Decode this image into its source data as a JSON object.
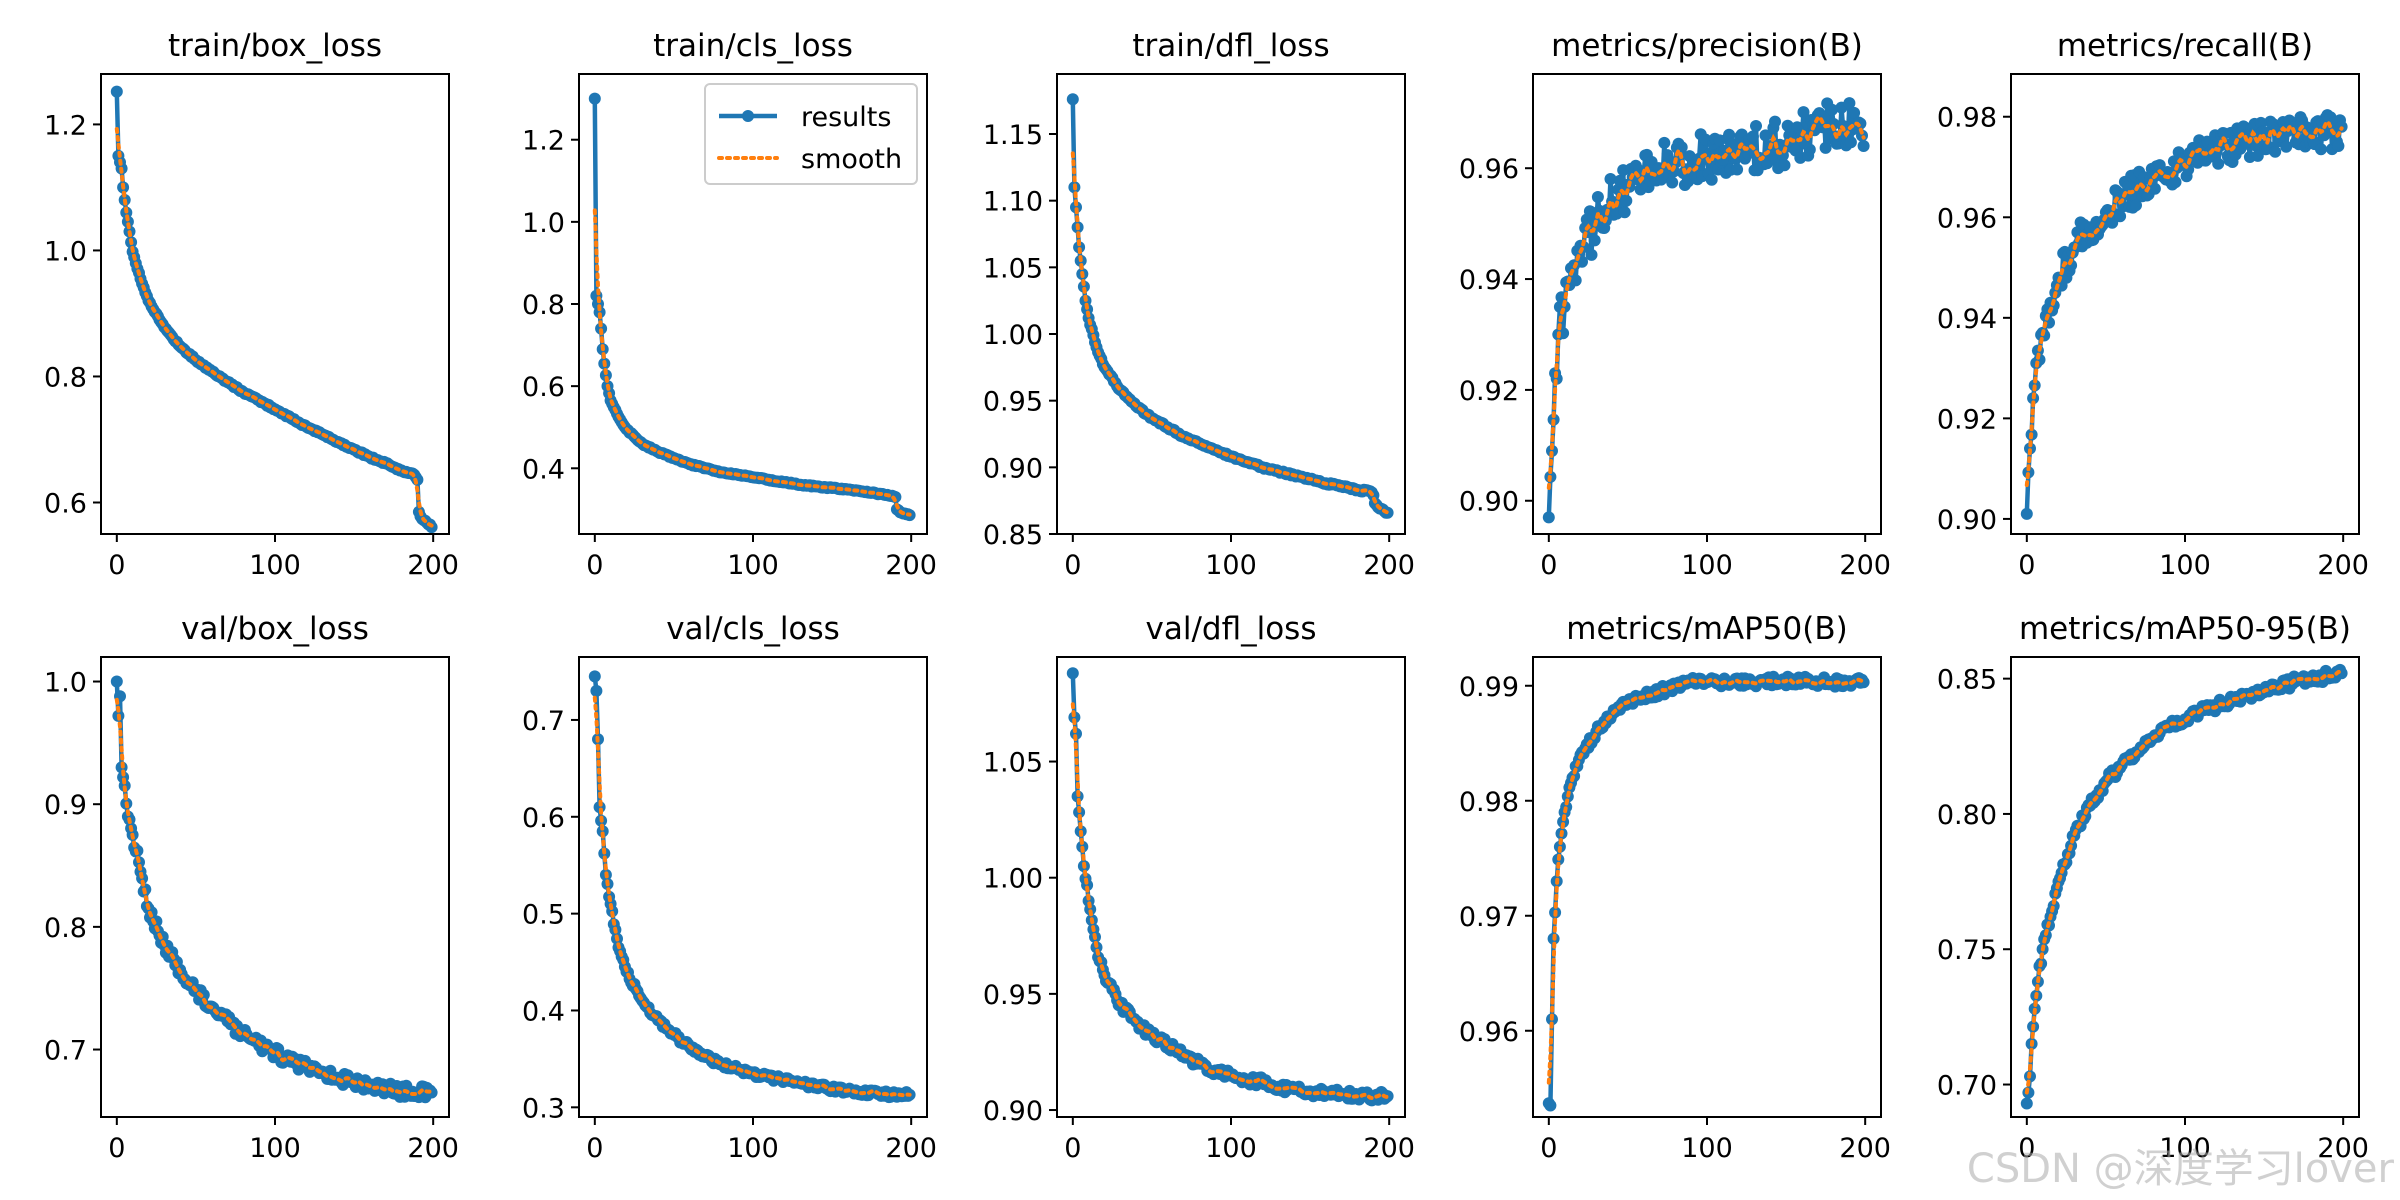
{
  "watermark": "CSDN @深度学习lover",
  "style": {
    "results_color": "#1f77b4",
    "smooth_color": "#ff7f0e",
    "axis_color": "#000000"
  },
  "legend": {
    "results": "results",
    "smooth": "smooth",
    "placement": "top-right",
    "panel": "train/cls_loss"
  },
  "chart_data": [
    {
      "type": "line",
      "title": "train/box_loss",
      "xlim": [
        -10,
        210
      ],
      "ylim": [
        0.55,
        1.28
      ],
      "xticks": [
        0,
        100,
        200
      ],
      "yticks": [
        0.6,
        0.8,
        1.0,
        1.2
      ],
      "ytick_labels": [
        "0.6",
        "0.8",
        "1.0",
        "1.2"
      ],
      "noise": 0.0015,
      "anchors": [
        [
          0,
          1.252
        ],
        [
          1,
          1.15
        ],
        [
          2,
          1.14
        ],
        [
          3,
          1.13
        ],
        [
          4,
          1.1
        ],
        [
          5,
          1.08
        ],
        [
          6,
          1.06
        ],
        [
          8,
          1.03
        ],
        [
          10,
          0.998
        ],
        [
          15,
          0.955
        ],
        [
          20,
          0.92
        ],
        [
          30,
          0.878
        ],
        [
          40,
          0.848
        ],
        [
          50,
          0.826
        ],
        [
          60,
          0.808
        ],
        [
          70,
          0.791
        ],
        [
          80,
          0.775
        ],
        [
          90,
          0.762
        ],
        [
          100,
          0.748
        ],
        [
          110,
          0.734
        ],
        [
          120,
          0.72
        ],
        [
          130,
          0.708
        ],
        [
          140,
          0.696
        ],
        [
          150,
          0.684
        ],
        [
          160,
          0.672
        ],
        [
          170,
          0.662
        ],
        [
          180,
          0.651
        ],
        [
          188,
          0.644
        ],
        [
          190,
          0.636
        ],
        [
          191,
          0.585
        ],
        [
          192,
          0.578
        ],
        [
          193,
          0.574
        ],
        [
          194,
          0.572
        ],
        [
          196,
          0.568
        ],
        [
          198,
          0.565
        ],
        [
          199,
          0.561
        ]
      ]
    },
    {
      "type": "line",
      "title": "train/cls_loss",
      "xlim": [
        -10,
        210
      ],
      "ylim": [
        0.24,
        1.36
      ],
      "xticks": [
        0,
        100,
        200
      ],
      "yticks": [
        0.4,
        0.6,
        0.8,
        1.0,
        1.2
      ],
      "ytick_labels": [
        "0.4",
        "0.6",
        "0.8",
        "1.0",
        "1.2"
      ],
      "noise": 0.0015,
      "anchors": [
        [
          0,
          1.3
        ],
        [
          1,
          0.82
        ],
        [
          2,
          0.8
        ],
        [
          3,
          0.78
        ],
        [
          4,
          0.74
        ],
        [
          5,
          0.69
        ],
        [
          6,
          0.655
        ],
        [
          8,
          0.6
        ],
        [
          10,
          0.565
        ],
        [
          15,
          0.525
        ],
        [
          20,
          0.495
        ],
        [
          30,
          0.46
        ],
        [
          40,
          0.44
        ],
        [
          50,
          0.425
        ],
        [
          60,
          0.41
        ],
        [
          70,
          0.4
        ],
        [
          80,
          0.39
        ],
        [
          90,
          0.385
        ],
        [
          100,
          0.378
        ],
        [
          110,
          0.372
        ],
        [
          120,
          0.366
        ],
        [
          130,
          0.36
        ],
        [
          140,
          0.356
        ],
        [
          150,
          0.352
        ],
        [
          160,
          0.348
        ],
        [
          170,
          0.343
        ],
        [
          180,
          0.338
        ],
        [
          188,
          0.333
        ],
        [
          190,
          0.33
        ],
        [
          191,
          0.3
        ],
        [
          193,
          0.293
        ],
        [
          195,
          0.29
        ],
        [
          197,
          0.288
        ],
        [
          199,
          0.286
        ]
      ]
    },
    {
      "type": "line",
      "title": "train/dfl_loss",
      "xlim": [
        -10,
        210
      ],
      "ylim": [
        0.85,
        1.195
      ],
      "xticks": [
        0,
        100,
        200
      ],
      "yticks": [
        0.85,
        0.9,
        0.95,
        1.0,
        1.05,
        1.1,
        1.15
      ],
      "ytick_labels": [
        "0.85",
        "0.90",
        "0.95",
        "1.00",
        "1.05",
        "1.10",
        "1.15"
      ],
      "noise": 0.0008,
      "anchors": [
        [
          0,
          1.176
        ],
        [
          1,
          1.11
        ],
        [
          2,
          1.095
        ],
        [
          3,
          1.08
        ],
        [
          4,
          1.065
        ],
        [
          5,
          1.055
        ],
        [
          6,
          1.045
        ],
        [
          8,
          1.025
        ],
        [
          10,
          1.012
        ],
        [
          15,
          0.99
        ],
        [
          20,
          0.975
        ],
        [
          30,
          0.958
        ],
        [
          40,
          0.946
        ],
        [
          50,
          0.937
        ],
        [
          60,
          0.93
        ],
        [
          70,
          0.923
        ],
        [
          80,
          0.918
        ],
        [
          90,
          0.913
        ],
        [
          100,
          0.908
        ],
        [
          110,
          0.904
        ],
        [
          120,
          0.9
        ],
        [
          130,
          0.897
        ],
        [
          140,
          0.894
        ],
        [
          150,
          0.891
        ],
        [
          160,
          0.888
        ],
        [
          170,
          0.886
        ],
        [
          180,
          0.883
        ],
        [
          188,
          0.882
        ],
        [
          190,
          0.879
        ],
        [
          191,
          0.873
        ],
        [
          193,
          0.87
        ],
        [
          195,
          0.869
        ],
        [
          197,
          0.867
        ],
        [
          199,
          0.866
        ]
      ]
    },
    {
      "type": "line",
      "title": "metrics/precision(B)",
      "xlim": [
        -10,
        210
      ],
      "ylim": [
        0.894,
        0.977
      ],
      "xticks": [
        0,
        100,
        200
      ],
      "yticks": [
        0.9,
        0.92,
        0.94,
        0.96
      ],
      "ytick_labels": [
        "0.90",
        "0.92",
        "0.94",
        "0.96"
      ],
      "noise": 0.0045,
      "anchors": [
        [
          0,
          0.897
        ],
        [
          2,
          0.909
        ],
        [
          4,
          0.923
        ],
        [
          6,
          0.93
        ],
        [
          10,
          0.935
        ],
        [
          15,
          0.942
        ],
        [
          20,
          0.946
        ],
        [
          30,
          0.95
        ],
        [
          40,
          0.954
        ],
        [
          50,
          0.957
        ],
        [
          60,
          0.959
        ],
        [
          70,
          0.96
        ],
        [
          80,
          0.961
        ],
        [
          100,
          0.962
        ],
        [
          120,
          0.963
        ],
        [
          140,
          0.964
        ],
        [
          160,
          0.966
        ],
        [
          180,
          0.968
        ],
        [
          195,
          0.968
        ],
        [
          199,
          0.964
        ]
      ]
    },
    {
      "type": "line",
      "title": "metrics/recall(B)",
      "xlim": [
        -10,
        210
      ],
      "ylim": [
        0.897,
        0.9885
      ],
      "xticks": [
        0,
        100,
        200
      ],
      "yticks": [
        0.9,
        0.92,
        0.94,
        0.96,
        0.98
      ],
      "ytick_labels": [
        "0.90",
        "0.92",
        "0.94",
        "0.96",
        "0.98"
      ],
      "noise": 0.0035,
      "anchors": [
        [
          0,
          0.901
        ],
        [
          2,
          0.914
        ],
        [
          4,
          0.924
        ],
        [
          6,
          0.931
        ],
        [
          10,
          0.937
        ],
        [
          15,
          0.943
        ],
        [
          20,
          0.948
        ],
        [
          30,
          0.954
        ],
        [
          40,
          0.958
        ],
        [
          50,
          0.961
        ],
        [
          60,
          0.964
        ],
        [
          70,
          0.966
        ],
        [
          80,
          0.968
        ],
        [
          100,
          0.971
        ],
        [
          120,
          0.973
        ],
        [
          140,
          0.975
        ],
        [
          160,
          0.976
        ],
        [
          180,
          0.977
        ],
        [
          195,
          0.977
        ],
        [
          199,
          0.978
        ]
      ]
    },
    {
      "type": "line",
      "title": "val/box_loss",
      "xlim": [
        -10,
        210
      ],
      "ylim": [
        0.645,
        1.02
      ],
      "xticks": [
        0,
        100,
        200
      ],
      "yticks": [
        0.7,
        0.8,
        0.9,
        1.0
      ],
      "ytick_labels": [
        "0.7",
        "0.8",
        "0.9",
        "1.0"
      ],
      "noise": 0.005,
      "anchors": [
        [
          0,
          1.0
        ],
        [
          1,
          0.972
        ],
        [
          2,
          0.988
        ],
        [
          3,
          0.93
        ],
        [
          5,
          0.915
        ],
        [
          7,
          0.89
        ],
        [
          10,
          0.875
        ],
        [
          15,
          0.845
        ],
        [
          20,
          0.815
        ],
        [
          30,
          0.785
        ],
        [
          40,
          0.765
        ],
        [
          50,
          0.748
        ],
        [
          60,
          0.735
        ],
        [
          70,
          0.723
        ],
        [
          80,
          0.712
        ],
        [
          90,
          0.703
        ],
        [
          100,
          0.697
        ],
        [
          110,
          0.69
        ],
        [
          120,
          0.686
        ],
        [
          130,
          0.682
        ],
        [
          140,
          0.677
        ],
        [
          150,
          0.673
        ],
        [
          160,
          0.671
        ],
        [
          170,
          0.668
        ],
        [
          180,
          0.666
        ],
        [
          190,
          0.665
        ],
        [
          199,
          0.665
        ]
      ]
    },
    {
      "type": "line",
      "title": "val/cls_loss",
      "xlim": [
        -10,
        210
      ],
      "ylim": [
        0.29,
        0.765
      ],
      "xticks": [
        0,
        100,
        200
      ],
      "yticks": [
        0.3,
        0.4,
        0.5,
        0.6,
        0.7
      ],
      "ytick_labels": [
        "0.3",
        "0.4",
        "0.5",
        "0.6",
        "0.7"
      ],
      "noise": 0.003,
      "anchors": [
        [
          0,
          0.745
        ],
        [
          1,
          0.73
        ],
        [
          2,
          0.68
        ],
        [
          3,
          0.61
        ],
        [
          5,
          0.585
        ],
        [
          7,
          0.54
        ],
        [
          10,
          0.51
        ],
        [
          15,
          0.465
        ],
        [
          20,
          0.44
        ],
        [
          30,
          0.41
        ],
        [
          40,
          0.39
        ],
        [
          50,
          0.375
        ],
        [
          60,
          0.362
        ],
        [
          70,
          0.352
        ],
        [
          80,
          0.345
        ],
        [
          90,
          0.34
        ],
        [
          100,
          0.335
        ],
        [
          110,
          0.331
        ],
        [
          120,
          0.328
        ],
        [
          130,
          0.325
        ],
        [
          140,
          0.322
        ],
        [
          150,
          0.319
        ],
        [
          160,
          0.317
        ],
        [
          170,
          0.315
        ],
        [
          180,
          0.314
        ],
        [
          190,
          0.313
        ],
        [
          199,
          0.313
        ]
      ]
    },
    {
      "type": "line",
      "title": "val/dfl_loss",
      "xlim": [
        -10,
        210
      ],
      "ylim": [
        0.897,
        1.095
      ],
      "xticks": [
        0,
        100,
        200
      ],
      "yticks": [
        0.9,
        0.95,
        1.0,
        1.05
      ],
      "ytick_labels": [
        "0.90",
        "0.95",
        "1.00",
        "1.05"
      ],
      "noise": 0.002,
      "anchors": [
        [
          0,
          1.088
        ],
        [
          1,
          1.069
        ],
        [
          2,
          1.062
        ],
        [
          3,
          1.035
        ],
        [
          5,
          1.02
        ],
        [
          7,
          1.005
        ],
        [
          10,
          0.99
        ],
        [
          15,
          0.97
        ],
        [
          20,
          0.958
        ],
        [
          30,
          0.945
        ],
        [
          40,
          0.938
        ],
        [
          50,
          0.932
        ],
        [
          60,
          0.928
        ],
        [
          70,
          0.924
        ],
        [
          80,
          0.92
        ],
        [
          90,
          0.917
        ],
        [
          100,
          0.915
        ],
        [
          110,
          0.913
        ],
        [
          120,
          0.912
        ],
        [
          130,
          0.91
        ],
        [
          140,
          0.909
        ],
        [
          150,
          0.908
        ],
        [
          160,
          0.907
        ],
        [
          170,
          0.907
        ],
        [
          180,
          0.906
        ],
        [
          190,
          0.906
        ],
        [
          199,
          0.906
        ]
      ]
    },
    {
      "type": "line",
      "title": "metrics/mAP50(B)",
      "xlim": [
        -10,
        210
      ],
      "ylim": [
        0.9525,
        0.9925
      ],
      "xticks": [
        0,
        100,
        200
      ],
      "yticks": [
        0.96,
        0.97,
        0.98,
        0.99
      ],
      "ytick_labels": [
        "0.96",
        "0.97",
        "0.98",
        "0.99"
      ],
      "noise": 0.0004,
      "anchors": [
        [
          0,
          0.9537
        ],
        [
          1,
          0.9535
        ],
        [
          2,
          0.961
        ],
        [
          3,
          0.968
        ],
        [
          5,
          0.973
        ],
        [
          7,
          0.976
        ],
        [
          10,
          0.979
        ],
        [
          15,
          0.982
        ],
        [
          20,
          0.984
        ],
        [
          30,
          0.986
        ],
        [
          40,
          0.9875
        ],
        [
          50,
          0.9885
        ],
        [
          60,
          0.989
        ],
        [
          70,
          0.9895
        ],
        [
          80,
          0.99
        ],
        [
          90,
          0.9903
        ],
        [
          100,
          0.9903
        ],
        [
          120,
          0.9903
        ],
        [
          140,
          0.9904
        ],
        [
          160,
          0.9904
        ],
        [
          180,
          0.9903
        ],
        [
          199,
          0.9903
        ]
      ]
    },
    {
      "type": "line",
      "title": "metrics/mAP50-95(B)",
      "xlim": [
        -10,
        210
      ],
      "ylim": [
        0.688,
        0.858
      ],
      "xticks": [
        0,
        100,
        200
      ],
      "yticks": [
        0.7,
        0.75,
        0.8,
        0.85
      ],
      "ytick_labels": [
        "0.70",
        "0.75",
        "0.80",
        "0.85"
      ],
      "noise": 0.002,
      "anchors": [
        [
          0,
          0.693
        ],
        [
          1,
          0.697
        ],
        [
          2,
          0.703
        ],
        [
          3,
          0.715
        ],
        [
          5,
          0.728
        ],
        [
          7,
          0.738
        ],
        [
          10,
          0.75
        ],
        [
          15,
          0.762
        ],
        [
          20,
          0.775
        ],
        [
          30,
          0.792
        ],
        [
          40,
          0.803
        ],
        [
          50,
          0.812
        ],
        [
          60,
          0.818
        ],
        [
          70,
          0.823
        ],
        [
          80,
          0.828
        ],
        [
          90,
          0.832
        ],
        [
          100,
          0.835
        ],
        [
          110,
          0.838
        ],
        [
          120,
          0.84
        ],
        [
          130,
          0.842
        ],
        [
          140,
          0.844
        ],
        [
          150,
          0.845
        ],
        [
          160,
          0.847
        ],
        [
          170,
          0.849
        ],
        [
          180,
          0.85
        ],
        [
          190,
          0.851
        ],
        [
          199,
          0.852
        ]
      ]
    }
  ]
}
